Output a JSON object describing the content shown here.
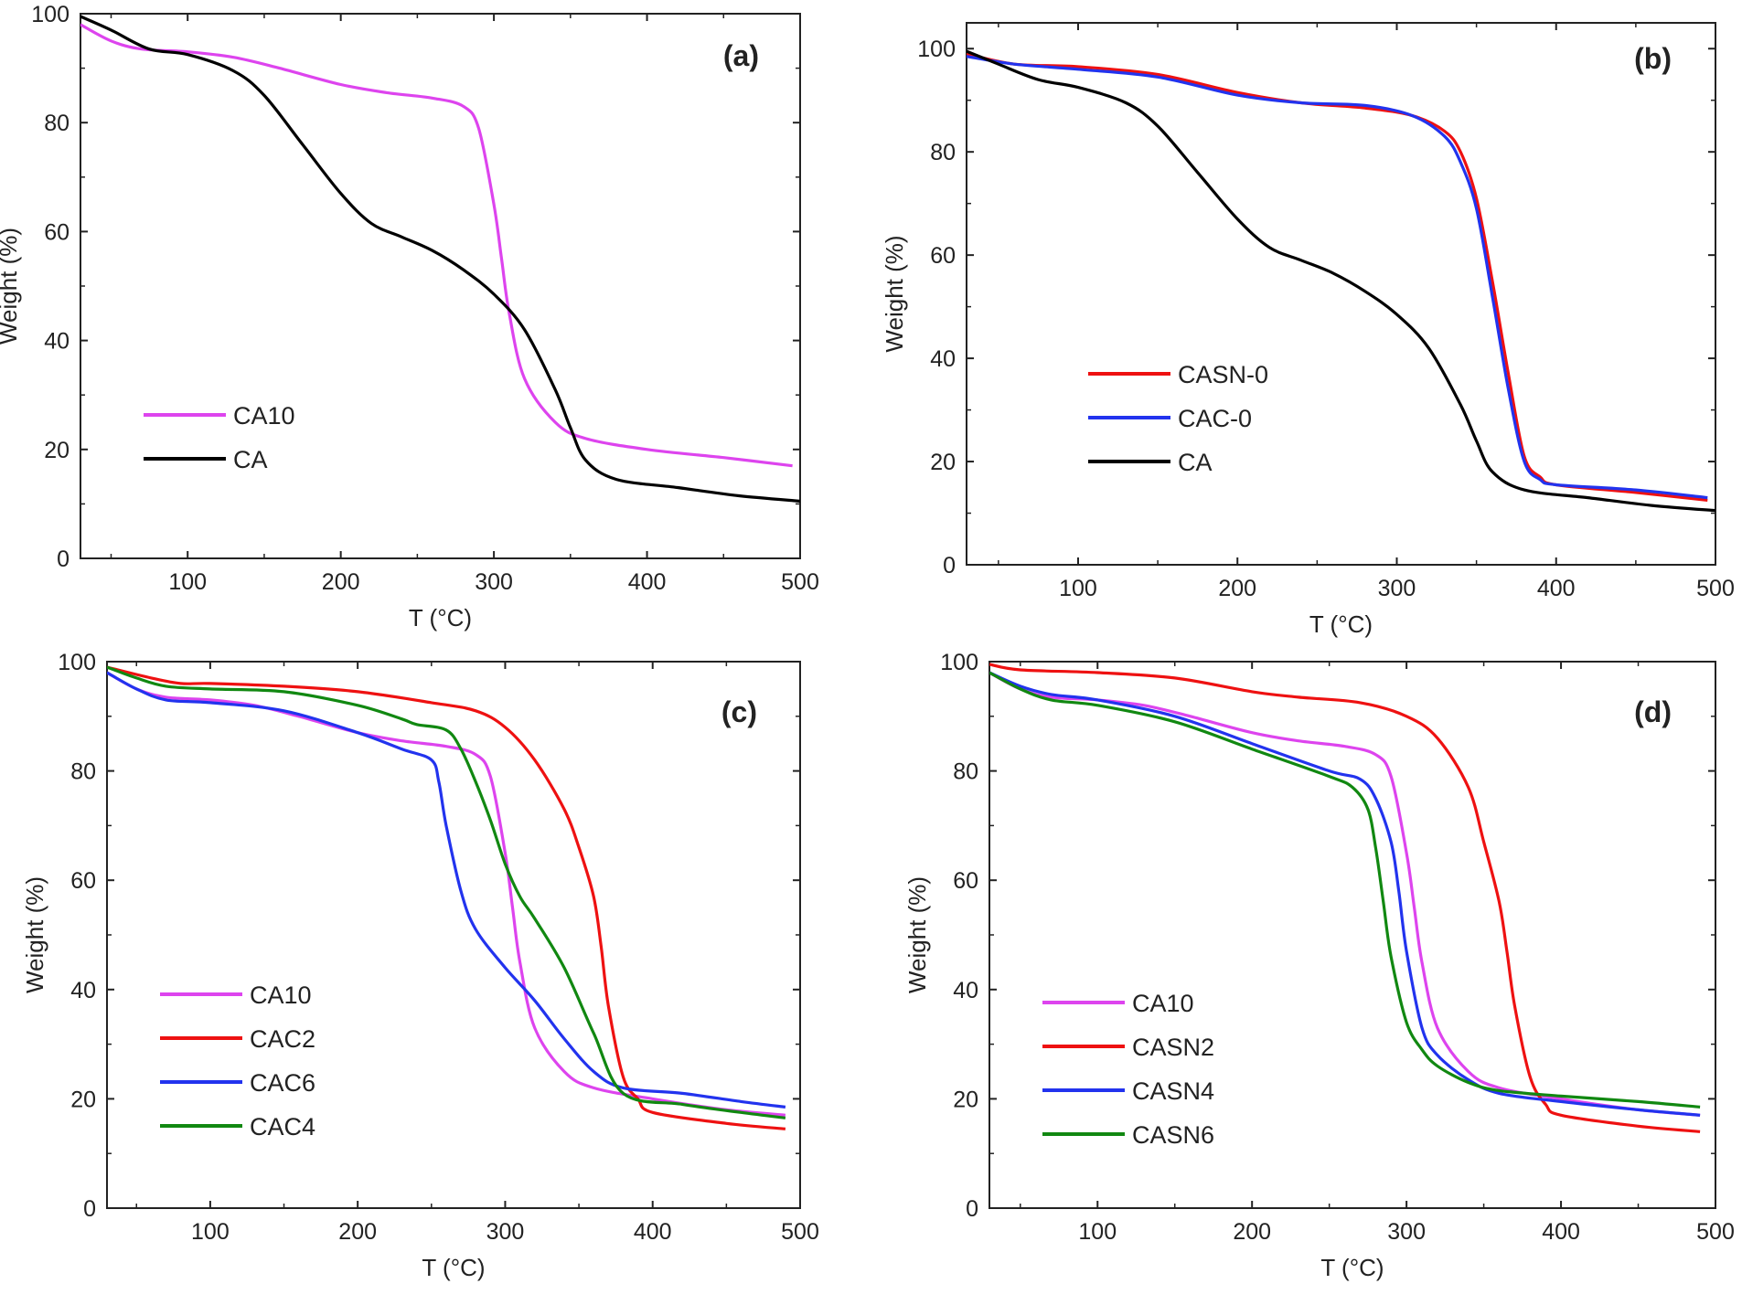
{
  "chart_data": [
    {
      "type": "line",
      "panel": "(a)",
      "title": "",
      "xlabel": "T (°C)",
      "ylabel": "Weight (%)",
      "xlim": [
        30,
        500
      ],
      "ylim": [
        0,
        100
      ],
      "xticks": [
        100,
        200,
        300,
        400,
        500
      ],
      "yticks": [
        0,
        20,
        40,
        60,
        80,
        100
      ],
      "grid": false,
      "legend_position": "bottom-left",
      "series": [
        {
          "name": "CA10",
          "color": "#dd44ee",
          "x": [
            30,
            50,
            70,
            100,
            130,
            160,
            200,
            230,
            260,
            280,
            290,
            300,
            305,
            310,
            320,
            340,
            360,
            400,
            450,
            495
          ],
          "y": [
            98,
            95,
            93.5,
            93,
            92,
            90,
            87,
            85.5,
            84.5,
            83,
            79,
            65,
            55,
            45,
            33,
            25,
            22,
            20,
            18.5,
            17
          ]
        },
        {
          "name": "CA",
          "color": "#000000",
          "x": [
            30,
            50,
            75,
            100,
            130,
            150,
            175,
            200,
            220,
            240,
            260,
            280,
            300,
            320,
            340,
            350,
            360,
            380,
            420,
            460,
            500
          ],
          "y": [
            99.5,
            97,
            93.5,
            92.5,
            89.5,
            85,
            76,
            67,
            61.5,
            59,
            56.5,
            53,
            48.5,
            42,
            31,
            24,
            18,
            14.5,
            13,
            11.5,
            10.5
          ]
        }
      ]
    },
    {
      "type": "line",
      "panel": "(b)",
      "title": "",
      "xlabel": "T (°C)",
      "ylabel": "Weight (%)",
      "xlim": [
        30,
        500
      ],
      "ylim": [
        0,
        105
      ],
      "xticks": [
        100,
        200,
        300,
        400,
        500
      ],
      "yticks": [
        0,
        20,
        40,
        60,
        80,
        100
      ],
      "grid": false,
      "legend_position": "bottom-left",
      "series": [
        {
          "name": "CASN-0",
          "color": "#ee1111",
          "x": [
            30,
            60,
            100,
            150,
            200,
            240,
            280,
            310,
            330,
            340,
            350,
            360,
            370,
            380,
            390,
            400,
            450,
            495
          ],
          "y": [
            99,
            97,
            96.5,
            95,
            91.5,
            89.5,
            88.5,
            87,
            84,
            80,
            71,
            55,
            37,
            21,
            17,
            15.5,
            14,
            12.5
          ]
        },
        {
          "name": "CAC-0",
          "color": "#2233ee",
          "x": [
            30,
            60,
            100,
            150,
            200,
            240,
            280,
            310,
            330,
            340,
            350,
            360,
            370,
            380,
            390,
            400,
            450,
            495
          ],
          "y": [
            98.5,
            97,
            96,
            94.5,
            91,
            89.5,
            89,
            87,
            83,
            78,
            69,
            52,
            34,
            20,
            16.5,
            15.5,
            14.5,
            13
          ]
        },
        {
          "name": "CA",
          "color": "#000000",
          "x": [
            30,
            50,
            75,
            100,
            130,
            150,
            175,
            200,
            220,
            240,
            260,
            280,
            300,
            320,
            340,
            350,
            360,
            380,
            420,
            460,
            500
          ],
          "y": [
            99.5,
            97,
            94,
            92.5,
            89.5,
            85,
            76,
            67,
            61.5,
            59,
            56.5,
            53,
            48.5,
            42,
            31,
            24,
            18,
            14.5,
            13,
            11.5,
            10.5
          ]
        }
      ]
    },
    {
      "type": "line",
      "panel": "(c)",
      "title": "",
      "xlabel": "T (°C)",
      "ylabel": "Weight (%)",
      "xlim": [
        30,
        500
      ],
      "ylim": [
        0,
        100
      ],
      "xticks": [
        100,
        200,
        300,
        400,
        500
      ],
      "yticks": [
        0,
        20,
        40,
        60,
        80,
        100
      ],
      "grid": false,
      "legend_position": "bottom-left",
      "series": [
        {
          "name": "CA10",
          "color": "#dd44ee",
          "x": [
            30,
            50,
            70,
            100,
            130,
            160,
            200,
            230,
            260,
            280,
            290,
            300,
            305,
            310,
            320,
            340,
            360,
            400,
            450,
            490
          ],
          "y": [
            98,
            95,
            93.5,
            93,
            92,
            90,
            87,
            85.5,
            84.5,
            83,
            79,
            65,
            55,
            45,
            33,
            25,
            22,
            20,
            18,
            17
          ]
        },
        {
          "name": "CAC2",
          "color": "#ee1111",
          "x": [
            30,
            60,
            80,
            100,
            150,
            200,
            250,
            280,
            300,
            320,
            340,
            350,
            360,
            365,
            370,
            380,
            390,
            400,
            450,
            490
          ],
          "y": [
            99,
            97,
            96,
            96,
            95.5,
            94.5,
            92.5,
            91,
            88,
            82,
            73,
            66,
            57,
            48,
            37,
            24,
            20,
            17.5,
            15.5,
            14.5
          ]
        },
        {
          "name": "CAC6",
          "color": "#2233ee",
          "x": [
            30,
            50,
            70,
            100,
            150,
            200,
            230,
            250,
            255,
            260,
            270,
            280,
            300,
            320,
            340,
            360,
            380,
            420,
            460,
            490
          ],
          "y": [
            98,
            95,
            93,
            92.5,
            91,
            87,
            84,
            82,
            78,
            70,
            58,
            51,
            44,
            38,
            31,
            25,
            22,
            21,
            19.5,
            18.5
          ]
        },
        {
          "name": "CAC4",
          "color": "#118811",
          "x": [
            30,
            50,
            70,
            100,
            150,
            200,
            230,
            240,
            260,
            270,
            280,
            290,
            300,
            310,
            320,
            340,
            360,
            380,
            420,
            460,
            490
          ],
          "y": [
            99,
            97,
            95.5,
            95,
            94.5,
            92,
            89.5,
            88.5,
            87.5,
            84,
            78,
            71,
            63,
            57,
            53,
            44,
            32,
            21,
            19,
            17.5,
            16.5
          ]
        }
      ]
    },
    {
      "type": "line",
      "panel": "(d)",
      "title": "",
      "xlabel": "T (°C)",
      "ylabel": "Weight (%)",
      "xlim": [
        30,
        500
      ],
      "ylim": [
        0,
        100
      ],
      "xticks": [
        100,
        200,
        300,
        400,
        500
      ],
      "yticks": [
        0,
        20,
        40,
        60,
        80,
        100
      ],
      "grid": false,
      "legend_position": "bottom-left",
      "series": [
        {
          "name": "CA10",
          "color": "#dd44ee",
          "x": [
            30,
            50,
            70,
            100,
            130,
            160,
            200,
            230,
            260,
            280,
            290,
            300,
            305,
            310,
            320,
            340,
            360,
            400,
            450,
            490
          ],
          "y": [
            98,
            95,
            93.5,
            93,
            92,
            90,
            87,
            85.5,
            84.5,
            83,
            79,
            65,
            55,
            45,
            33,
            25,
            22,
            20,
            18,
            17
          ]
        },
        {
          "name": "CASN2",
          "color": "#ee1111",
          "x": [
            30,
            50,
            100,
            150,
            200,
            230,
            270,
            300,
            320,
            340,
            350,
            360,
            365,
            370,
            380,
            390,
            400,
            450,
            490
          ],
          "y": [
            99.5,
            98.5,
            98,
            97,
            94.5,
            93.5,
            92.5,
            90,
            86,
            77,
            67,
            56,
            47,
            37,
            24,
            19,
            17,
            15,
            14
          ]
        },
        {
          "name": "CASN4",
          "color": "#2233ee",
          "x": [
            30,
            50,
            70,
            100,
            150,
            200,
            250,
            270,
            280,
            290,
            295,
            300,
            310,
            320,
            340,
            360,
            400,
            450,
            490
          ],
          "y": [
            98,
            95.5,
            94,
            93,
            90,
            85,
            80,
            78.5,
            75,
            67,
            58,
            47,
            33,
            28,
            23.5,
            21,
            19.5,
            18,
            17
          ]
        },
        {
          "name": "CASN6",
          "color": "#118811",
          "x": [
            30,
            50,
            70,
            100,
            150,
            200,
            250,
            265,
            275,
            280,
            285,
            290,
            300,
            310,
            320,
            340,
            360,
            400,
            450,
            490
          ],
          "y": [
            98,
            95,
            93,
            92,
            89,
            84,
            79,
            77,
            73,
            66,
            56,
            46,
            34,
            29,
            26,
            23,
            21.5,
            20.5,
            19.5,
            18.5
          ]
        }
      ]
    }
  ]
}
